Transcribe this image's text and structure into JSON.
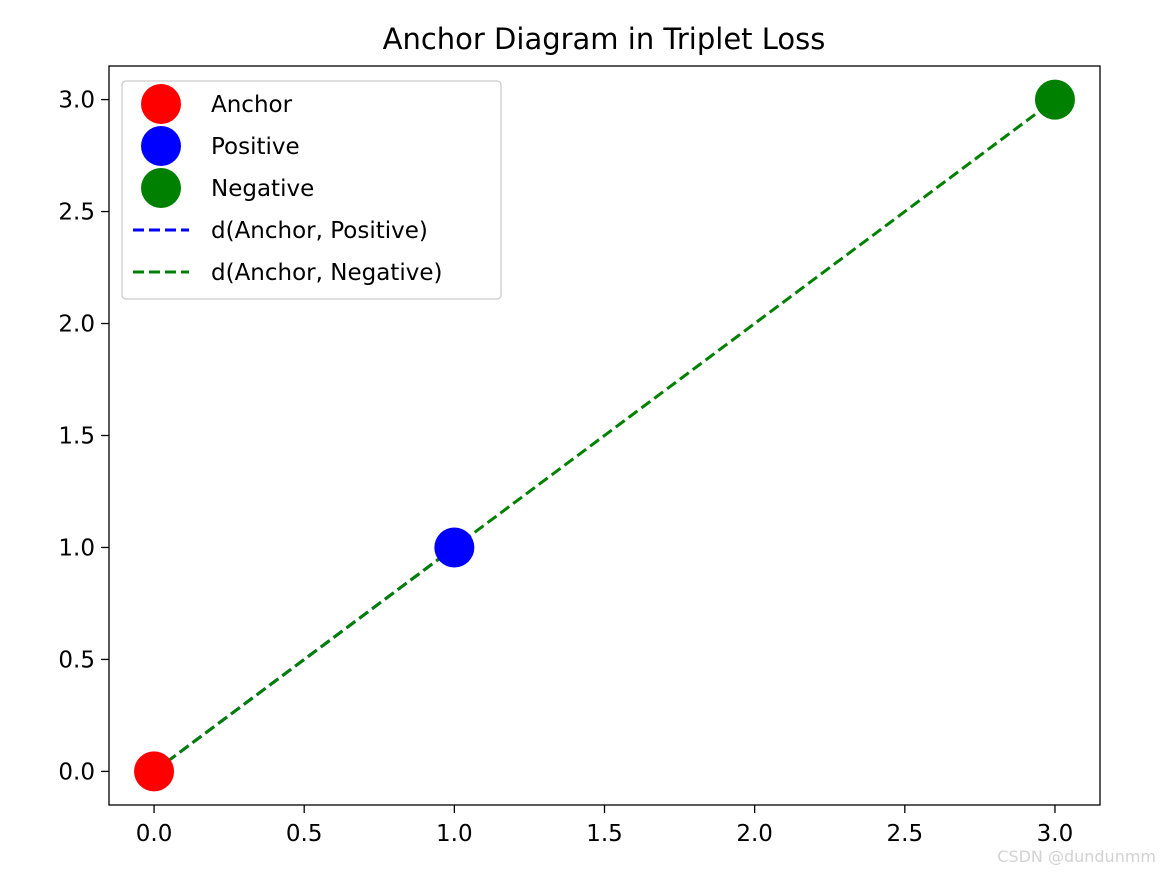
{
  "chart_data": {
    "type": "scatter",
    "title": "Anchor Diagram in Triplet Loss",
    "xlabel": "",
    "ylabel": "",
    "xlim": [
      -0.15,
      3.15
    ],
    "ylim": [
      -0.15,
      3.15
    ],
    "x_ticks": [
      0.0,
      0.5,
      1.0,
      1.5,
      2.0,
      2.5,
      3.0
    ],
    "y_ticks": [
      0.0,
      0.5,
      1.0,
      1.5,
      2.0,
      2.5,
      3.0
    ],
    "x_tick_labels": [
      "0.0",
      "0.5",
      "1.0",
      "1.5",
      "2.0",
      "2.5",
      "3.0"
    ],
    "y_tick_labels": [
      "0.0",
      "0.5",
      "1.0",
      "1.5",
      "2.0",
      "2.5",
      "3.0"
    ],
    "grid": false,
    "legend_position": "upper left",
    "points": [
      {
        "name": "Anchor",
        "x": 0,
        "y": 0,
        "color": "#ff0000"
      },
      {
        "name": "Positive",
        "x": 1,
        "y": 1,
        "color": "#0000ff"
      },
      {
        "name": "Negative",
        "x": 3,
        "y": 3,
        "color": "#008000"
      }
    ],
    "lines": [
      {
        "name": "d(Anchor, Positive)",
        "x": [
          0,
          1
        ],
        "y": [
          0,
          1
        ],
        "color": "#0000ff",
        "style": "dashed"
      },
      {
        "name": "d(Anchor, Negative)",
        "x": [
          0,
          3
        ],
        "y": [
          0,
          3
        ],
        "color": "#008000",
        "style": "dashed"
      }
    ],
    "legend": [
      {
        "label": "Anchor",
        "kind": "marker",
        "color": "#ff0000"
      },
      {
        "label": "Positive",
        "kind": "marker",
        "color": "#0000ff"
      },
      {
        "label": "Negative",
        "kind": "marker",
        "color": "#008000"
      },
      {
        "label": "d(Anchor, Positive)",
        "kind": "dashed-line",
        "color": "#0000ff"
      },
      {
        "label": "d(Anchor, Negative)",
        "kind": "dashed-line",
        "color": "#008000"
      }
    ]
  },
  "watermark": "CSDN @dundunmm"
}
